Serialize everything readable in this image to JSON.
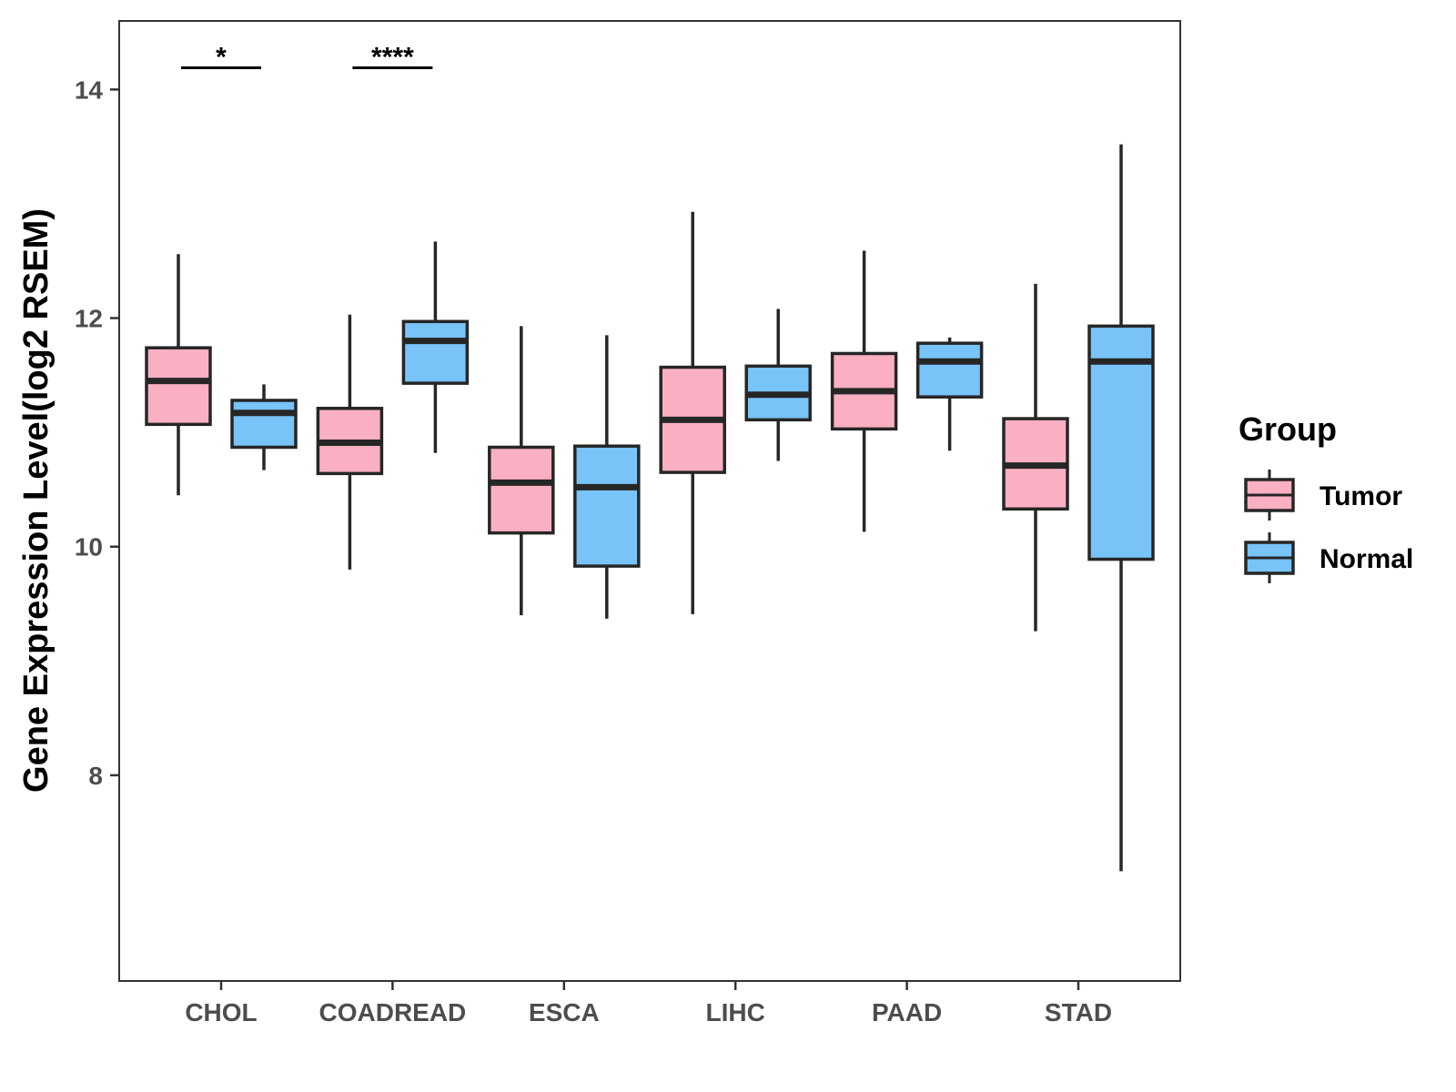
{
  "chart_data": {
    "type": "boxplot",
    "title": "",
    "xlabel": "",
    "ylabel": "Gene Expression Level(log2 RSEM)",
    "ylim": [
      6.2,
      14.6
    ],
    "yticks": [
      8,
      10,
      12,
      14
    ],
    "categories": [
      "CHOL",
      "COADREAD",
      "ESCA",
      "LIHC",
      "PAAD",
      "STAD"
    ],
    "grid": false,
    "legend": {
      "title": "Group",
      "position": "right",
      "entries": [
        "Tumor",
        "Normal"
      ]
    },
    "series": [
      {
        "name": "Tumor",
        "color": "#FAB0C2",
        "boxes": [
          {
            "min": 10.45,
            "q1": 11.07,
            "median": 11.45,
            "q3": 11.74,
            "max": 12.56
          },
          {
            "min": 9.8,
            "q1": 10.64,
            "median": 10.91,
            "q3": 11.21,
            "max": 12.03
          },
          {
            "min": 9.4,
            "q1": 10.12,
            "median": 10.56,
            "q3": 10.87,
            "max": 11.93
          },
          {
            "min": 9.41,
            "q1": 10.65,
            "median": 11.11,
            "q3": 11.57,
            "max": 12.93
          },
          {
            "min": 10.13,
            "q1": 11.03,
            "median": 11.36,
            "q3": 11.69,
            "max": 12.59
          },
          {
            "min": 9.26,
            "q1": 10.33,
            "median": 10.71,
            "q3": 11.12,
            "max": 12.3
          }
        ]
      },
      {
        "name": "Normal",
        "color": "#78C3F8",
        "boxes": [
          {
            "min": 10.67,
            "q1": 10.87,
            "median": 11.17,
            "q3": 11.28,
            "max": 11.42
          },
          {
            "min": 10.82,
            "q1": 11.43,
            "median": 11.8,
            "q3": 11.97,
            "max": 12.67
          },
          {
            "min": 9.37,
            "q1": 9.83,
            "median": 10.52,
            "q3": 10.88,
            "max": 11.85
          },
          {
            "min": 10.75,
            "q1": 11.11,
            "median": 11.33,
            "q3": 11.58,
            "max": 12.08
          },
          {
            "min": 10.84,
            "q1": 11.31,
            "median": 11.62,
            "q3": 11.78,
            "max": 11.83
          },
          {
            "min": 7.16,
            "q1": 9.89,
            "median": 11.62,
            "q3": 11.93,
            "max": 13.52
          }
        ]
      }
    ],
    "annotations": [
      {
        "category": "CHOL",
        "label": "*",
        "y": 14.19
      },
      {
        "category": "COADREAD",
        "label": "****",
        "y": 14.19
      }
    ]
  }
}
